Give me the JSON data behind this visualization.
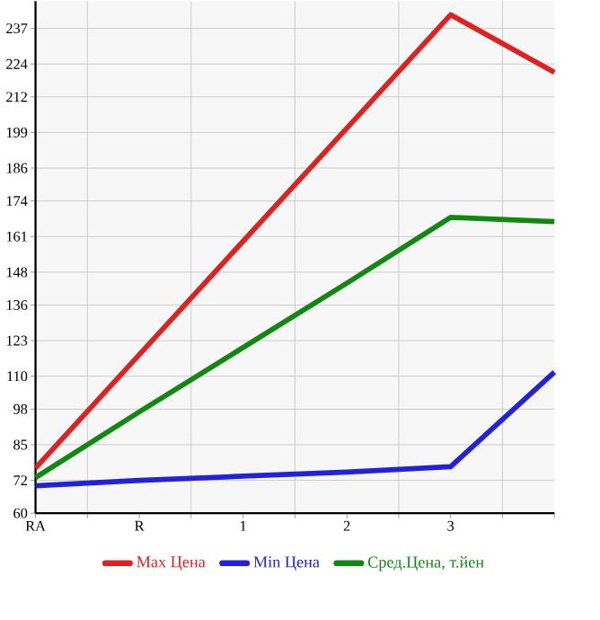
{
  "chart_data": {
    "type": "line",
    "categories": [
      "RA",
      "R",
      "1",
      "2",
      "3",
      null
    ],
    "series": [
      {
        "name": "Max Цена",
        "color": "#dd2222",
        "values": [
          76.5,
          117.9,
          159.3,
          200.6,
          242,
          221
        ]
      },
      {
        "name": "Min Цена",
        "color": "#2222dd",
        "values": [
          70,
          72,
          73.5,
          75,
          77,
          111.5
        ]
      },
      {
        "name": "Сред.Цена, т.йен",
        "color": "#118811",
        "values": [
          73,
          97,
          120.5,
          144,
          168,
          166.5
        ]
      }
    ],
    "ylim": [
      60,
      247
    ],
    "yticks": [
      60,
      72,
      85,
      98,
      110,
      123,
      136,
      148,
      161,
      174,
      186,
      199,
      212,
      224,
      237
    ],
    "grid": true,
    "legend": "bottom",
    "marker": "none",
    "line_style": "solid"
  }
}
